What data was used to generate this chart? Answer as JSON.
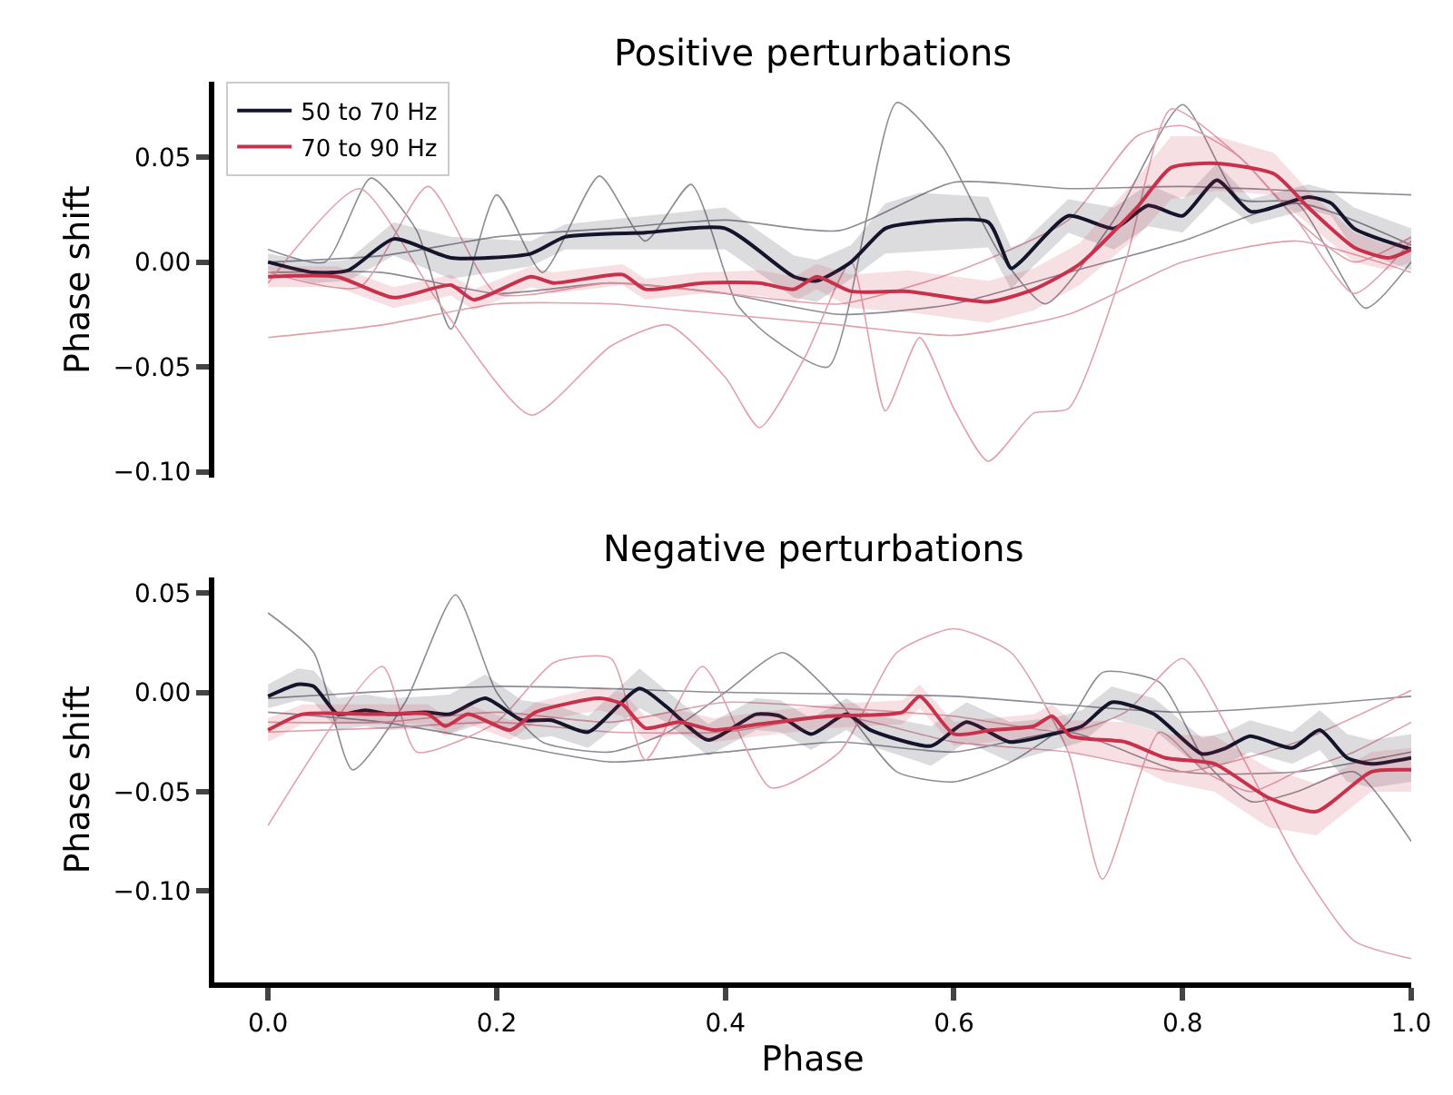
{
  "chart_data": [
    {
      "type": "line",
      "title": "Positive perturbations",
      "ylabel": "Phase shift",
      "xlim": [
        -0.047,
        1.0
      ],
      "ylim": [
        -0.103,
        0.086
      ],
      "yticks": [
        {
          "value": -0.1,
          "label": "−0.10"
        },
        {
          "value": -0.05,
          "label": "−0.05"
        },
        {
          "value": 0.0,
          "label": "0.00"
        },
        {
          "value": 0.05,
          "label": "0.05"
        }
      ],
      "tick_labels": "y",
      "legend": "top left",
      "line_style": "solid",
      "marker": "none",
      "series": [
        {
          "color": "#8c8c96",
          "x": [
            0,
            0.05,
            0.09,
            0.13,
            0.16,
            0.2,
            0.24,
            0.29,
            0.33,
            0.37,
            0.41,
            0.44,
            0.49,
            0.55,
            0.59,
            0.64,
            0.68,
            0.74,
            0.8,
            0.85,
            0.9,
            0.96,
            1.0
          ],
          "values": [
            0.006,
            0.0,
            0.04,
            0.015,
            -0.032,
            0.032,
            -0.005,
            0.041,
            0.01,
            0.037,
            -0.02,
            -0.036,
            -0.05,
            0.076,
            0.055,
            0.004,
            -0.02,
            0.02,
            0.075,
            0.03,
            0.028,
            -0.022,
            0.0
          ]
        },
        {
          "color": "#8c8c96",
          "x": [
            0,
            0.1,
            0.2,
            0.3,
            0.4,
            0.5,
            0.6,
            0.7,
            0.8,
            0.9,
            1.0
          ],
          "values": [
            0.0,
            0.003,
            0.012,
            0.016,
            0.02,
            0.015,
            0.038,
            0.035,
            0.036,
            0.034,
            0.032
          ]
        },
        {
          "color": "#8c8c96",
          "x": [
            0,
            0.1,
            0.2,
            0.3,
            0.4,
            0.5,
            0.6,
            0.7,
            0.8,
            0.9,
            1.0
          ],
          "values": [
            -0.005,
            -0.005,
            -0.015,
            -0.01,
            -0.015,
            -0.025,
            -0.02,
            -0.005,
            0.01,
            0.028,
            0.008
          ]
        },
        {
          "color": "#e0a0ac",
          "x": [
            0,
            0.08,
            0.15,
            0.23,
            0.3,
            0.35,
            0.4,
            0.43,
            0.47,
            0.51,
            0.54,
            0.57,
            0.6,
            0.63,
            0.67,
            0.7,
            0.75,
            0.79,
            0.85,
            0.9,
            0.95,
            1.0
          ],
          "values": [
            -0.01,
            0.035,
            -0.02,
            -0.073,
            -0.04,
            -0.03,
            -0.055,
            -0.079,
            -0.045,
            0.0,
            -0.071,
            -0.036,
            -0.07,
            -0.095,
            -0.072,
            -0.07,
            0.0,
            0.073,
            0.05,
            0.02,
            -0.015,
            0.01
          ]
        },
        {
          "color": "#e0a0ac",
          "x": [
            0,
            0.1,
            0.2,
            0.3,
            0.4,
            0.5,
            0.6,
            0.7,
            0.8,
            0.9,
            1.0
          ],
          "values": [
            -0.036,
            -0.03,
            -0.02,
            -0.02,
            -0.025,
            -0.03,
            -0.035,
            -0.025,
            0.0,
            0.01,
            -0.005
          ]
        },
        {
          "color": "#e0a0ac",
          "x": [
            0,
            0.08,
            0.14,
            0.2,
            0.3,
            0.4,
            0.5,
            0.6,
            0.7,
            0.76,
            0.8,
            0.85,
            0.9,
            0.95,
            1.0
          ],
          "values": [
            -0.005,
            -0.012,
            0.036,
            -0.015,
            -0.01,
            -0.015,
            -0.02,
            -0.005,
            0.02,
            0.06,
            0.065,
            0.05,
            0.02,
            0.0,
            0.012
          ]
        },
        {
          "name": "50 to 70 Hz",
          "color": "#14142b",
          "x": [
            0,
            0.04,
            0.07,
            0.11,
            0.16,
            0.23,
            0.26,
            0.33,
            0.4,
            0.46,
            0.48,
            0.51,
            0.54,
            0.57,
            0.63,
            0.65,
            0.66,
            0.7,
            0.74,
            0.77,
            0.8,
            0.83,
            0.86,
            0.91,
            0.93,
            0.95,
            1.0
          ],
          "values": [
            0.0,
            -0.005,
            -0.004,
            0.011,
            0.002,
            0.004,
            0.012,
            0.014,
            0.016,
            -0.007,
            -0.009,
            0.0,
            0.016,
            0.019,
            0.019,
            -0.003,
            0.001,
            0.022,
            0.016,
            0.027,
            0.022,
            0.039,
            0.024,
            0.031,
            0.028,
            0.016,
            0.006
          ],
          "lower": [
            -0.004,
            -0.01,
            -0.009,
            0.003,
            -0.008,
            -0.002,
            0.006,
            0.006,
            0.006,
            -0.017,
            -0.019,
            -0.008,
            0.004,
            0.005,
            0.007,
            -0.013,
            -0.007,
            0.014,
            0.006,
            0.017,
            0.014,
            0.031,
            0.018,
            0.025,
            0.022,
            0.006,
            -0.004
          ],
          "upper": [
            0.004,
            0.0,
            0.001,
            0.019,
            0.012,
            0.01,
            0.018,
            0.022,
            0.026,
            0.003,
            0.001,
            0.008,
            0.028,
            0.033,
            0.031,
            0.007,
            0.009,
            0.03,
            0.026,
            0.037,
            0.03,
            0.047,
            0.03,
            0.037,
            0.034,
            0.026,
            0.016
          ]
        },
        {
          "name": "70 to 90 Hz",
          "color": "#c8314b",
          "x": [
            0,
            0.06,
            0.11,
            0.16,
            0.18,
            0.23,
            0.25,
            0.31,
            0.33,
            0.38,
            0.43,
            0.46,
            0.48,
            0.51,
            0.56,
            0.63,
            0.67,
            0.71,
            0.76,
            0.79,
            0.83,
            0.88,
            0.91,
            0.95,
            0.98,
            1.0
          ],
          "values": [
            -0.007,
            -0.007,
            -0.017,
            -0.011,
            -0.018,
            -0.007,
            -0.01,
            -0.006,
            -0.013,
            -0.01,
            -0.01,
            -0.013,
            -0.007,
            -0.014,
            -0.014,
            -0.019,
            -0.013,
            -0.001,
            0.026,
            0.045,
            0.047,
            0.042,
            0.026,
            0.007,
            0.002,
            0.006
          ],
          "lower": [
            -0.012,
            -0.012,
            -0.022,
            -0.016,
            -0.023,
            -0.012,
            -0.015,
            -0.011,
            -0.018,
            -0.015,
            -0.016,
            -0.019,
            -0.013,
            -0.022,
            -0.024,
            -0.029,
            -0.023,
            -0.011,
            0.012,
            0.03,
            0.034,
            0.032,
            0.018,
            0.0,
            -0.004,
            0.0
          ],
          "upper": [
            -0.002,
            -0.002,
            -0.012,
            -0.006,
            -0.013,
            -0.002,
            -0.005,
            -0.001,
            -0.008,
            -0.005,
            -0.004,
            -0.007,
            -0.001,
            -0.006,
            -0.004,
            -0.009,
            -0.003,
            0.009,
            0.04,
            0.06,
            0.06,
            0.052,
            0.034,
            0.014,
            0.008,
            0.012
          ]
        }
      ]
    },
    {
      "type": "line",
      "title": "Negative perturbations",
      "ylabel": "Phase shift",
      "xlabel": "Phase",
      "xlim": [
        -0.047,
        1.0
      ],
      "ylim": [
        -0.146,
        0.058
      ],
      "xticks": [
        {
          "value": 0.0,
          "label": "0.0"
        },
        {
          "value": 0.2,
          "label": "0.2"
        },
        {
          "value": 0.4,
          "label": "0.4"
        },
        {
          "value": 0.6,
          "label": "0.6"
        },
        {
          "value": 0.8,
          "label": "0.8"
        },
        {
          "value": 1.0,
          "label": "1.0"
        }
      ],
      "yticks": [
        {
          "value": -0.1,
          "label": "−0.10"
        },
        {
          "value": -0.05,
          "label": "−0.05"
        },
        {
          "value": 0.0,
          "label": "0.00"
        },
        {
          "value": 0.05,
          "label": "0.05"
        }
      ],
      "line_style": "solid",
      "marker": "none",
      "series": [
        {
          "color": "#8c8c96",
          "x": [
            0,
            0.04,
            0.074,
            0.12,
            0.164,
            0.2,
            0.24,
            0.3,
            0.35,
            0.4,
            0.45,
            0.5,
            0.55,
            0.6,
            0.65,
            0.7,
            0.73,
            0.78,
            0.82,
            0.86,
            0.9,
            0.95,
            1.0
          ],
          "values": [
            0.04,
            0.02,
            -0.039,
            -0.005,
            0.049,
            0.0,
            -0.025,
            -0.03,
            -0.02,
            0.0,
            0.02,
            -0.005,
            -0.04,
            -0.045,
            -0.035,
            -0.015,
            0.01,
            0.005,
            -0.035,
            -0.055,
            -0.05,
            -0.04,
            -0.075
          ]
        },
        {
          "color": "#8c8c96",
          "x": [
            0,
            0.2,
            0.4,
            0.6,
            0.8,
            1.0
          ],
          "values": [
            -0.003,
            0.003,
            0.0,
            -0.002,
            -0.01,
            -0.002
          ]
        },
        {
          "color": "#8c8c96",
          "x": [
            0,
            0.1,
            0.2,
            0.3,
            0.4,
            0.5,
            0.6,
            0.7,
            0.8,
            0.9,
            1.0
          ],
          "values": [
            -0.01,
            -0.015,
            -0.025,
            -0.035,
            -0.03,
            -0.025,
            -0.03,
            -0.02,
            -0.04,
            -0.04,
            -0.03
          ]
        },
        {
          "color": "#e0a0ac",
          "x": [
            0,
            0.1,
            0.13,
            0.2,
            0.25,
            0.3,
            0.33,
            0.38,
            0.44,
            0.5,
            0.55,
            0.6,
            0.65,
            0.7,
            0.73,
            0.78,
            0.82,
            0.86,
            0.9,
            0.95,
            1.0
          ],
          "values": [
            -0.067,
            0.013,
            -0.03,
            -0.015,
            0.015,
            0.017,
            -0.034,
            0.013,
            -0.048,
            -0.03,
            0.02,
            0.032,
            0.02,
            -0.03,
            -0.094,
            -0.02,
            -0.04,
            -0.05,
            -0.04,
            -0.03,
            -0.015
          ]
        },
        {
          "color": "#e0a0ac",
          "x": [
            0,
            0.1,
            0.2,
            0.3,
            0.4,
            0.5,
            0.6,
            0.7,
            0.75,
            0.8,
            0.85,
            0.9,
            0.95,
            1.0
          ],
          "values": [
            -0.015,
            -0.015,
            -0.01,
            -0.015,
            -0.005,
            -0.008,
            -0.012,
            -0.02,
            -0.01,
            0.017,
            -0.03,
            -0.085,
            -0.125,
            -0.134
          ]
        },
        {
          "color": "#e0a0ac",
          "x": [
            0,
            0.1,
            0.2,
            0.3,
            0.4,
            0.5,
            0.6,
            0.7,
            0.8,
            0.9,
            1.0
          ],
          "values": [
            -0.02,
            -0.018,
            -0.015,
            -0.02,
            -0.02,
            -0.012,
            -0.025,
            -0.03,
            -0.04,
            -0.025,
            0.001
          ]
        },
        {
          "color": "#14142b",
          "x": [
            0,
            0.026,
            0.04,
            0.061,
            0.085,
            0.106,
            0.138,
            0.159,
            0.19,
            0.222,
            0.248,
            0.28,
            0.325,
            0.348,
            0.385,
            0.427,
            0.448,
            0.475,
            0.506,
            0.527,
            0.58,
            0.611,
            0.649,
            0.686,
            0.712,
            0.738,
            0.775,
            0.817,
            0.838,
            0.859,
            0.896,
            0.92,
            0.944,
            0.965,
            1.0
          ],
          "values": [
            -0.002,
            0.004,
            0.003,
            -0.011,
            -0.009,
            -0.011,
            -0.01,
            -0.011,
            -0.003,
            -0.014,
            -0.014,
            -0.02,
            0.002,
            -0.007,
            -0.024,
            -0.011,
            -0.012,
            -0.021,
            -0.011,
            -0.019,
            -0.027,
            -0.015,
            -0.025,
            -0.021,
            -0.017,
            -0.005,
            -0.011,
            -0.031,
            -0.028,
            -0.022,
            -0.028,
            -0.019,
            -0.033,
            -0.036,
            -0.033
          ],
          "lower": [
            -0.008,
            -0.004,
            -0.005,
            -0.019,
            -0.017,
            -0.019,
            -0.018,
            -0.021,
            -0.015,
            -0.024,
            -0.022,
            -0.028,
            -0.008,
            -0.015,
            -0.032,
            -0.019,
            -0.02,
            -0.029,
            -0.019,
            -0.027,
            -0.037,
            -0.025,
            -0.035,
            -0.029,
            -0.025,
            -0.013,
            -0.019,
            -0.039,
            -0.036,
            -0.03,
            -0.036,
            -0.029,
            -0.045,
            -0.048,
            -0.045
          ],
          "upper": [
            0.004,
            0.012,
            0.011,
            -0.003,
            -0.001,
            -0.003,
            -0.002,
            -0.001,
            0.009,
            -0.004,
            -0.006,
            -0.012,
            0.012,
            0.001,
            -0.016,
            -0.003,
            -0.004,
            -0.013,
            -0.003,
            -0.011,
            -0.017,
            -0.005,
            -0.015,
            -0.013,
            -0.009,
            0.003,
            -0.003,
            -0.023,
            -0.02,
            -0.014,
            -0.02,
            -0.009,
            -0.021,
            -0.024,
            -0.021
          ]
        },
        {
          "color": "#c8314b",
          "x": [
            0,
            0.03,
            0.095,
            0.14,
            0.155,
            0.175,
            0.212,
            0.234,
            0.29,
            0.31,
            0.33,
            0.36,
            0.39,
            0.43,
            0.49,
            0.555,
            0.57,
            0.6,
            0.633,
            0.67,
            0.686,
            0.702,
            0.75,
            0.785,
            0.828,
            0.875,
            0.917,
            0.965,
            1.0
          ],
          "values": [
            -0.019,
            -0.011,
            -0.011,
            -0.011,
            -0.017,
            -0.011,
            -0.019,
            -0.01,
            -0.003,
            -0.006,
            -0.018,
            -0.015,
            -0.019,
            -0.016,
            -0.012,
            -0.01,
            -0.002,
            -0.021,
            -0.019,
            -0.017,
            -0.012,
            -0.022,
            -0.025,
            -0.033,
            -0.036,
            -0.053,
            -0.06,
            -0.04,
            -0.039
          ],
          "lower": [
            -0.025,
            -0.016,
            -0.016,
            -0.016,
            -0.022,
            -0.016,
            -0.024,
            -0.015,
            -0.009,
            -0.012,
            -0.024,
            -0.021,
            -0.025,
            -0.022,
            -0.018,
            -0.016,
            -0.008,
            -0.027,
            -0.025,
            -0.023,
            -0.018,
            -0.03,
            -0.035,
            -0.045,
            -0.05,
            -0.068,
            -0.072,
            -0.05,
            -0.05
          ],
          "upper": [
            -0.013,
            -0.006,
            -0.006,
            -0.006,
            -0.012,
            -0.006,
            -0.014,
            -0.005,
            0.003,
            0.0,
            -0.012,
            -0.009,
            -0.013,
            -0.01,
            -0.006,
            -0.004,
            0.004,
            -0.015,
            -0.013,
            -0.011,
            -0.006,
            -0.014,
            -0.015,
            -0.021,
            -0.022,
            -0.038,
            -0.046,
            -0.03,
            -0.028
          ]
        }
      ]
    }
  ]
}
